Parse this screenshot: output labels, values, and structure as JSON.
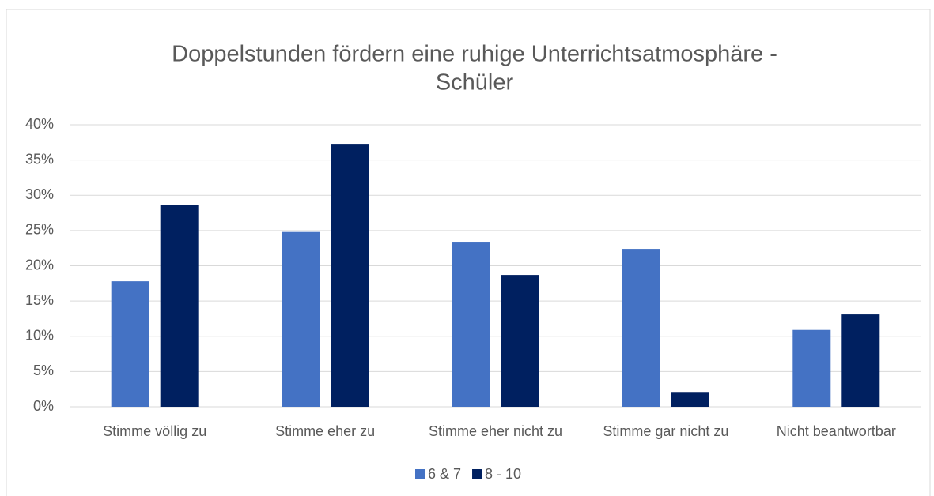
{
  "chart_data": {
    "type": "bar",
    "title": [
      "Doppelstunden fördern eine ruhige Unterrichtsatmosphäre -",
      "Schüler"
    ],
    "categories": [
      "Stimme völlig zu",
      "Stimme eher zu",
      "Stimme eher nicht zu",
      "Stimme gar nicht zu",
      "Nicht beantwortbar"
    ],
    "series": [
      {
        "name": "6 & 7",
        "color": "#4472c4",
        "values": [
          17.8,
          24.8,
          23.3,
          22.4,
          10.9
        ]
      },
      {
        "name": "8 - 10",
        "color": "#002060",
        "values": [
          28.6,
          37.3,
          18.7,
          2.1,
          13.1
        ]
      }
    ],
    "ylim": [
      0,
      40
    ],
    "yticks": [
      {
        "value": 0,
        "label": "0%"
      },
      {
        "value": 5,
        "label": "5%"
      },
      {
        "value": 10,
        "label": "10%"
      },
      {
        "value": 15,
        "label": "15%"
      },
      {
        "value": 20,
        "label": "20%"
      },
      {
        "value": 25,
        "label": "25%"
      },
      {
        "value": 30,
        "label": "30%"
      },
      {
        "value": 35,
        "label": "35%"
      },
      {
        "value": 40,
        "label": "40%"
      }
    ],
    "grid": true,
    "legend": "bottom"
  }
}
